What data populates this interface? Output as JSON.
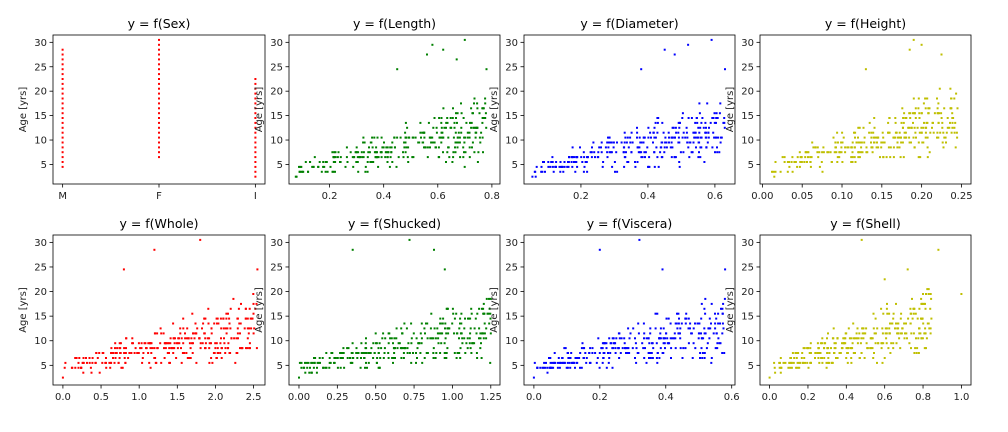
{
  "figure": {
    "ylabel": "Age [yrs]"
  },
  "colors": {
    "red": "#ff0000",
    "green": "#008000",
    "blue": "#0000ff",
    "olive": "#bfbf00"
  },
  "chart_data": [
    {
      "type": "scatter",
      "title": "y = f(Sex)",
      "ylabel": "Age [yrs]",
      "color": "#ff0000",
      "x_kind": "categorical",
      "categories": [
        "M",
        "F",
        "I"
      ],
      "xlim": [
        -0.1,
        2.1
      ],
      "ylim": [
        1,
        31.5
      ],
      "xticks": [
        0,
        1,
        2
      ],
      "xtick_labels": [
        "M",
        "F",
        "I"
      ],
      "yticks": [
        5,
        10,
        15,
        20,
        25,
        30
      ],
      "ranges": [
        {
          "category": "M",
          "y_min": 4.5,
          "y_max": 28.5
        },
        {
          "category": "F",
          "y_min": 6.5,
          "y_max": 30.5
        },
        {
          "category": "I",
          "y_min": 2.5,
          "y_max": 22.5
        }
      ]
    },
    {
      "type": "scatter",
      "title": "y = f(Length)",
      "ylabel": "Age [yrs]",
      "color": "#008000",
      "xlim": [
        0.05,
        0.83
      ],
      "ylim": [
        1,
        31.5
      ],
      "xticks": [
        0.2,
        0.4,
        0.6,
        0.8
      ],
      "xtick_labels": [
        "0.2",
        "0.4",
        "0.6",
        "0.8"
      ],
      "yticks": [
        5,
        10,
        15,
        20,
        25,
        30
      ],
      "trend": {
        "x_min": 0.075,
        "x_max": 0.78,
        "y_at_min": 3.5,
        "y_at_max": 12,
        "spread_min": 1,
        "spread_max": 5
      },
      "outliers": [
        [
          0.075,
          2.5
        ],
        [
          0.56,
          27.5
        ],
        [
          0.62,
          28.5
        ],
        [
          0.7,
          30.5
        ],
        [
          0.78,
          24.5
        ],
        [
          0.45,
          24.5
        ],
        [
          0.67,
          26.5
        ],
        [
          0.58,
          29.5
        ]
      ]
    },
    {
      "type": "scatter",
      "title": "y = f(Diameter)",
      "ylabel": "Age [yrs]",
      "color": "#0000ff",
      "xlim": [
        0.03,
        0.66
      ],
      "ylim": [
        1,
        31.5
      ],
      "xticks": [
        0.2,
        0.4,
        0.6
      ],
      "xtick_labels": [
        "0.2",
        "0.4",
        "0.6"
      ],
      "yticks": [
        5,
        10,
        15,
        20,
        25,
        30
      ],
      "trend": {
        "x_min": 0.055,
        "x_max": 0.63,
        "y_at_min": 3.5,
        "y_at_max": 12,
        "spread_min": 1,
        "spread_max": 5
      },
      "outliers": [
        [
          0.055,
          2.5
        ],
        [
          0.45,
          28.5
        ],
        [
          0.59,
          30.5
        ],
        [
          0.63,
          24.5
        ],
        [
          0.38,
          24.5
        ],
        [
          0.48,
          27.5
        ],
        [
          0.52,
          29.5
        ]
      ]
    },
    {
      "type": "scatter",
      "title": "y = f(Height)",
      "ylabel": "Age [yrs]",
      "color": "#bfbf00",
      "xlim": [
        -0.003,
        0.262
      ],
      "ylim": [
        1,
        31.5
      ],
      "xticks": [
        0.0,
        0.05,
        0.1,
        0.15,
        0.2,
        0.25
      ],
      "xtick_labels": [
        "0.00",
        "0.05",
        "0.10",
        "0.15",
        "0.20",
        "0.25"
      ],
      "yticks": [
        5,
        10,
        15,
        20,
        25,
        30
      ],
      "trend": {
        "x_min": 0.01,
        "x_max": 0.245,
        "y_at_min": 3.5,
        "y_at_max": 14,
        "spread_min": 1,
        "spread_max": 5
      },
      "outliers": [
        [
          0.015,
          2.5
        ],
        [
          0.19,
          30.5
        ],
        [
          0.225,
          27.5
        ],
        [
          0.185,
          28.5
        ],
        [
          0.13,
          24.5
        ],
        [
          0.2,
          29.5
        ],
        [
          0.245,
          16.5
        ]
      ]
    },
    {
      "type": "scatter",
      "title": "y = f(Whole)",
      "ylabel": "Age [yrs]",
      "color": "#ff0000",
      "xlim": [
        -0.13,
        2.65
      ],
      "ylim": [
        1,
        31.5
      ],
      "xticks": [
        0.0,
        0.5,
        1.0,
        1.5,
        2.0,
        2.5
      ],
      "xtick_labels": [
        "0.0",
        "0.5",
        "1.0",
        "1.5",
        "2.0",
        "2.5"
      ],
      "yticks": [
        5,
        10,
        15,
        20,
        25,
        30
      ],
      "trend": {
        "x_min": 0.0,
        "x_max": 2.55,
        "y_at_min": 4,
        "y_at_max": 12.5,
        "spread_min": 1,
        "spread_max": 5
      },
      "outliers": [
        [
          0.0,
          2.5
        ],
        [
          1.8,
          30.5
        ],
        [
          2.55,
          24.5
        ],
        [
          1.2,
          28.5
        ],
        [
          0.8,
          24.5
        ],
        [
          2.2,
          16.5
        ],
        [
          2.5,
          11.5
        ]
      ]
    },
    {
      "type": "scatter",
      "title": "y = f(Shucked)",
      "ylabel": "Age [yrs]",
      "color": "#008000",
      "xlim": [
        -0.065,
        1.31
      ],
      "ylim": [
        1,
        31.5
      ],
      "xticks": [
        0.0,
        0.25,
        0.5,
        0.75,
        1.0,
        1.25
      ],
      "xtick_labels": [
        "0.00",
        "0.25",
        "0.50",
        "0.75",
        "1.00",
        "1.25"
      ],
      "yticks": [
        5,
        10,
        15,
        20,
        25,
        30
      ],
      "trend": {
        "x_min": 0.0,
        "x_max": 1.25,
        "y_at_min": 4,
        "y_at_max": 12.5,
        "spread_min": 1,
        "spread_max": 5
      },
      "outliers": [
        [
          0.0,
          2.5
        ],
        [
          0.72,
          30.5
        ],
        [
          0.88,
          28.5
        ],
        [
          0.35,
          28.5
        ],
        [
          1.25,
          11.5
        ],
        [
          1.05,
          14.5
        ],
        [
          0.95,
          24.5
        ]
      ]
    },
    {
      "type": "scatter",
      "title": "y = f(Viscera)",
      "ylabel": "Age [yrs]",
      "color": "#0000ff",
      "xlim": [
        -0.03,
        0.61
      ],
      "ylim": [
        1,
        31.5
      ],
      "xticks": [
        0.0,
        0.2,
        0.4,
        0.6
      ],
      "xtick_labels": [
        "0.0",
        "0.2",
        "0.4",
        "0.6"
      ],
      "yticks": [
        5,
        10,
        15,
        20,
        25,
        30
      ],
      "trend": {
        "x_min": 0.0,
        "x_max": 0.58,
        "y_at_min": 4,
        "y_at_max": 12.5,
        "spread_min": 1,
        "spread_max": 5
      },
      "outliers": [
        [
          0.0,
          2.5
        ],
        [
          0.32,
          30.5
        ],
        [
          0.2,
          28.5
        ],
        [
          0.58,
          24.5
        ],
        [
          0.46,
          14.5
        ],
        [
          0.39,
          24.5
        ]
      ]
    },
    {
      "type": "scatter",
      "title": "y = f(Shell)",
      "ylabel": "Age [yrs]",
      "color": "#bfbf00",
      "xlim": [
        -0.05,
        1.05
      ],
      "ylim": [
        1,
        31.5
      ],
      "xticks": [
        0.0,
        0.2,
        0.4,
        0.6,
        0.8,
        1.0
      ],
      "xtick_labels": [
        "0.0",
        "0.2",
        "0.4",
        "0.6",
        "0.8",
        "1.0"
      ],
      "yticks": [
        5,
        10,
        15,
        20,
        25,
        30
      ],
      "trend": {
        "x_min": 0.0,
        "x_max": 0.85,
        "y_at_min": 4,
        "y_at_max": 14,
        "spread_min": 1,
        "spread_max": 5
      },
      "outliers": [
        [
          0.0,
          2.5
        ],
        [
          0.48,
          30.5
        ],
        [
          0.88,
          28.5
        ],
        [
          1.0,
          19.5
        ],
        [
          0.72,
          24.5
        ],
        [
          0.6,
          22.5
        ]
      ]
    }
  ]
}
